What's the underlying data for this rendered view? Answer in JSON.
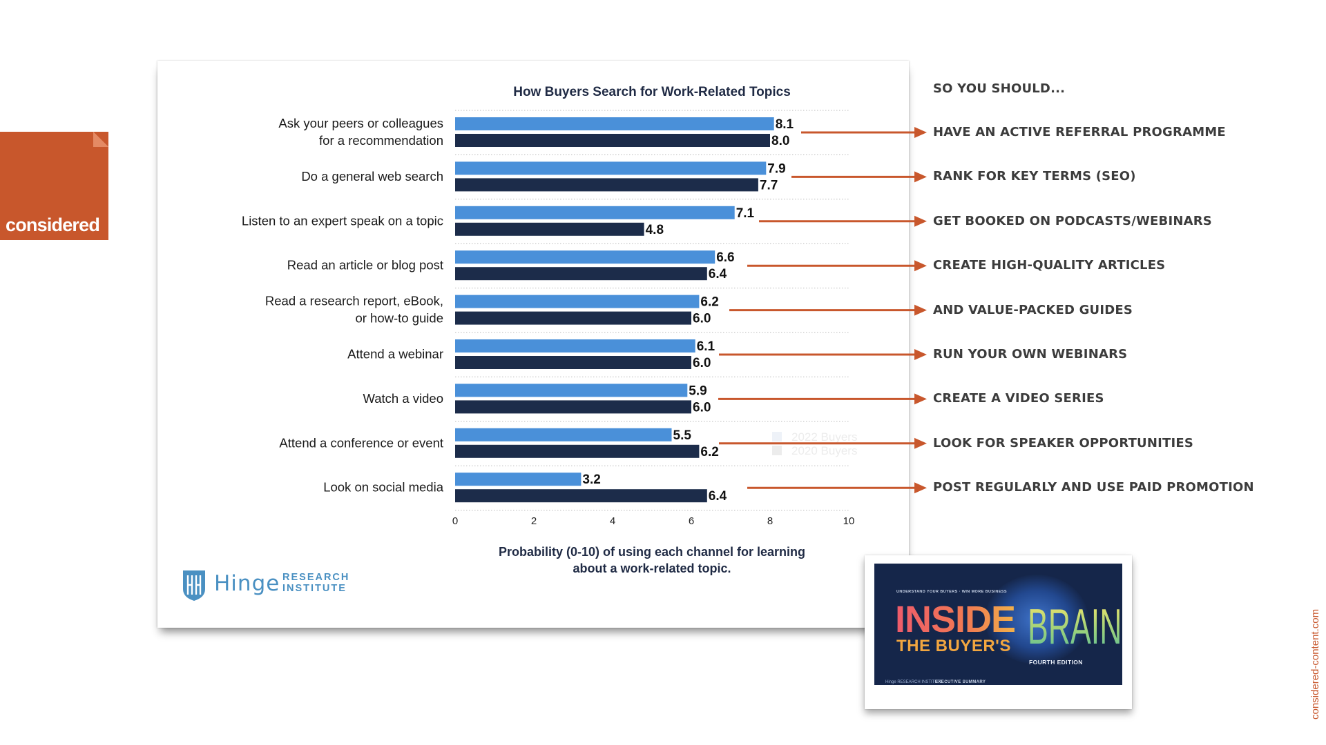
{
  "brand": {
    "logo_text": "considered",
    "side_url": "considered-content.com",
    "accent_color": "#c8572c"
  },
  "chart_data": {
    "type": "bar",
    "title": "How Buyers Search for Work-Related Topics",
    "xlabel_line1": "Probability (0-10) of using each channel for learning",
    "xlabel_line2": "about a work-related topic.",
    "xlim": [
      0,
      10
    ],
    "xticks": [
      0,
      2,
      4,
      6,
      8,
      10
    ],
    "grid": "dotted horizontal separators",
    "categories": [
      [
        "Ask your peers or colleagues",
        "for a recommendation"
      ],
      [
        "Do a general web search"
      ],
      [
        "Listen to an expert speak on a topic"
      ],
      [
        "Read an article or blog post"
      ],
      [
        "Read a research report, eBook,",
        "or how-to guide"
      ],
      [
        "Attend a webinar"
      ],
      [
        "Watch a video"
      ],
      [
        "Attend a conference or event"
      ],
      [
        "Look on social media"
      ]
    ],
    "series": [
      {
        "name": "2022 Buyers",
        "color": "#4a90d9",
        "values": [
          8.1,
          7.9,
          7.1,
          6.6,
          6.2,
          6.1,
          5.9,
          5.5,
          3.2
        ]
      },
      {
        "name": "2020 Buyers",
        "color": "#1c2c4a",
        "values": [
          8.0,
          7.7,
          4.8,
          6.4,
          6.0,
          6.0,
          6.0,
          6.2,
          6.4
        ]
      }
    ],
    "legend_placement": "lower-right, faded behind arrow"
  },
  "source_logo": {
    "word": "Hinge",
    "line1": "RESEARCH",
    "line2": "INSTITUTE"
  },
  "panel": {
    "heading": "SO YOU SHOULD...",
    "actions": [
      "HAVE AN ACTIVE REFERRAL PROGRAMME",
      "RANK FOR KEY TERMS (SEO)",
      "GET BOOKED ON PODCASTS/WEBINARS",
      "CREATE HIGH-QUALITY ARTICLES",
      "AND VALUE-PACKED GUIDES",
      "RUN YOUR OWN WEBINARS",
      "CREATE A VIDEO SERIES",
      "LOOK FOR SPEAKER OPPORTUNITIES",
      "POST REGULARLY AND USE PAID PROMOTION"
    ],
    "arrow_color": "#c8572c"
  },
  "book": {
    "tagline": "UNDERSTAND YOUR BUYERS  ·  WIN MORE BUSINESS",
    "title_inside": "INSIDE",
    "title_buyers": "THE BUYER'S",
    "title_brain": "BRAIN",
    "edition": "FOURTH EDITION",
    "footer_logo": "Hinge RESEARCH INSTITUTE",
    "footer_label": "EXECUTIVE SUMMARY"
  }
}
